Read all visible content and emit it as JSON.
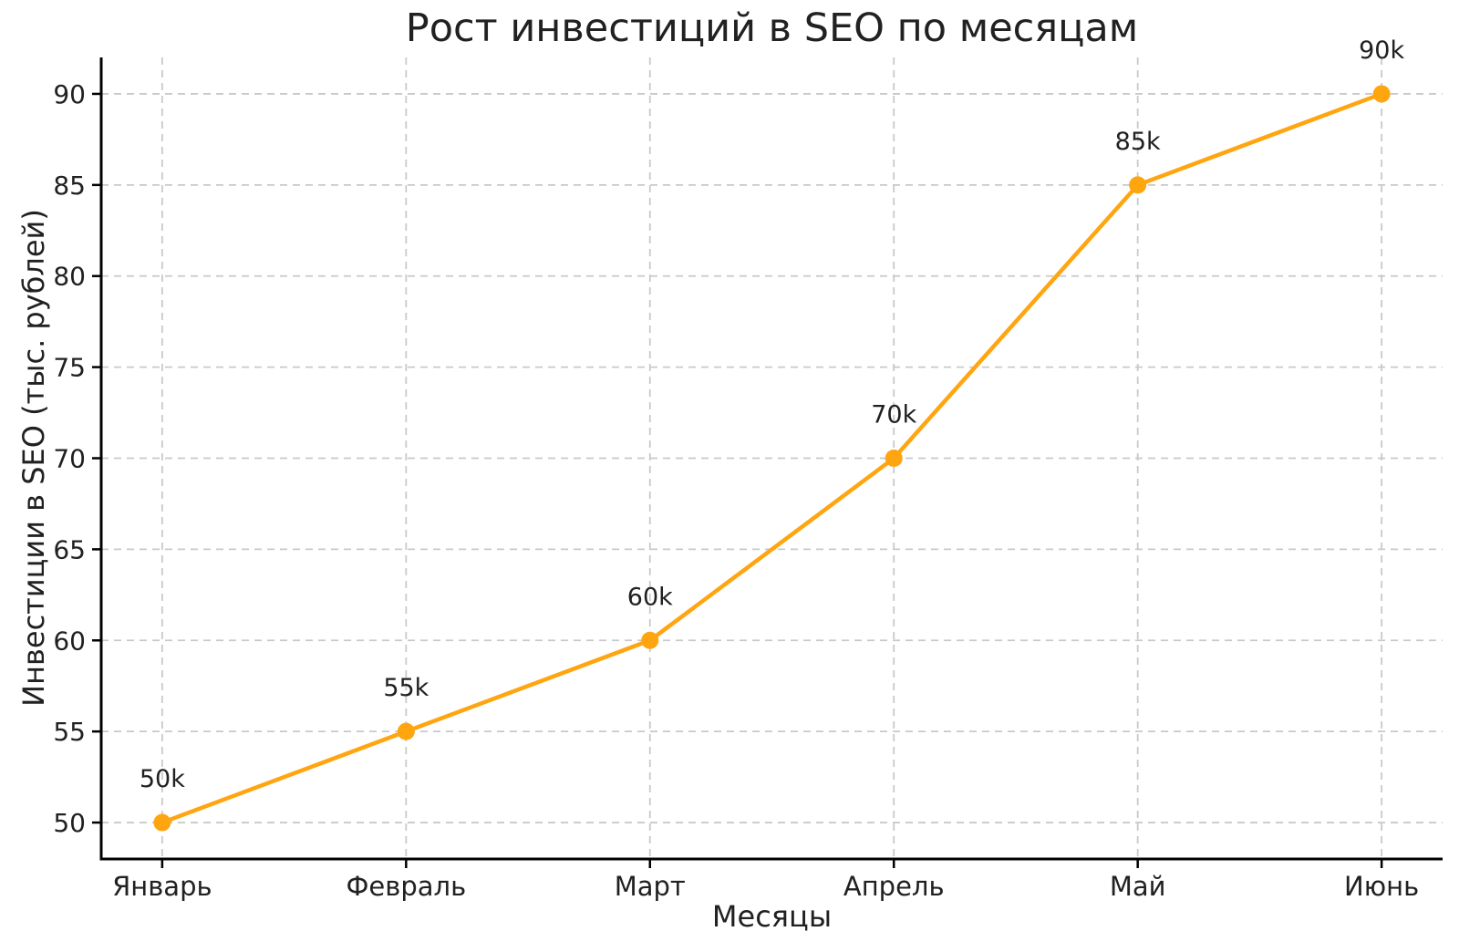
{
  "chart_data": {
    "type": "line",
    "title": "Рост инвестиций в SEO по месяцам",
    "xlabel": "Месяцы",
    "ylabel": "Инвестиции в SEO (тыс. рублей)",
    "categories": [
      "Январь",
      "Февраль",
      "Март",
      "Апрель",
      "Май",
      "Июнь"
    ],
    "values": [
      50,
      55,
      60,
      70,
      85,
      90
    ],
    "point_labels": [
      "50k",
      "55k",
      "60k",
      "70k",
      "85k",
      "90k"
    ],
    "series_name": "Инвестиции в SEO",
    "ylim": [
      48,
      92
    ],
    "xlim": [
      -0.25,
      5.25
    ],
    "yticks": [
      50,
      55,
      60,
      65,
      70,
      75,
      80,
      85,
      90
    ],
    "grid": "dashed, both axes",
    "legend": "none",
    "colors": {
      "line": "#FFA510",
      "marker": "#FFA510",
      "grid": "#c9c9c9",
      "spine": "#000000",
      "text": "#212121"
    }
  }
}
